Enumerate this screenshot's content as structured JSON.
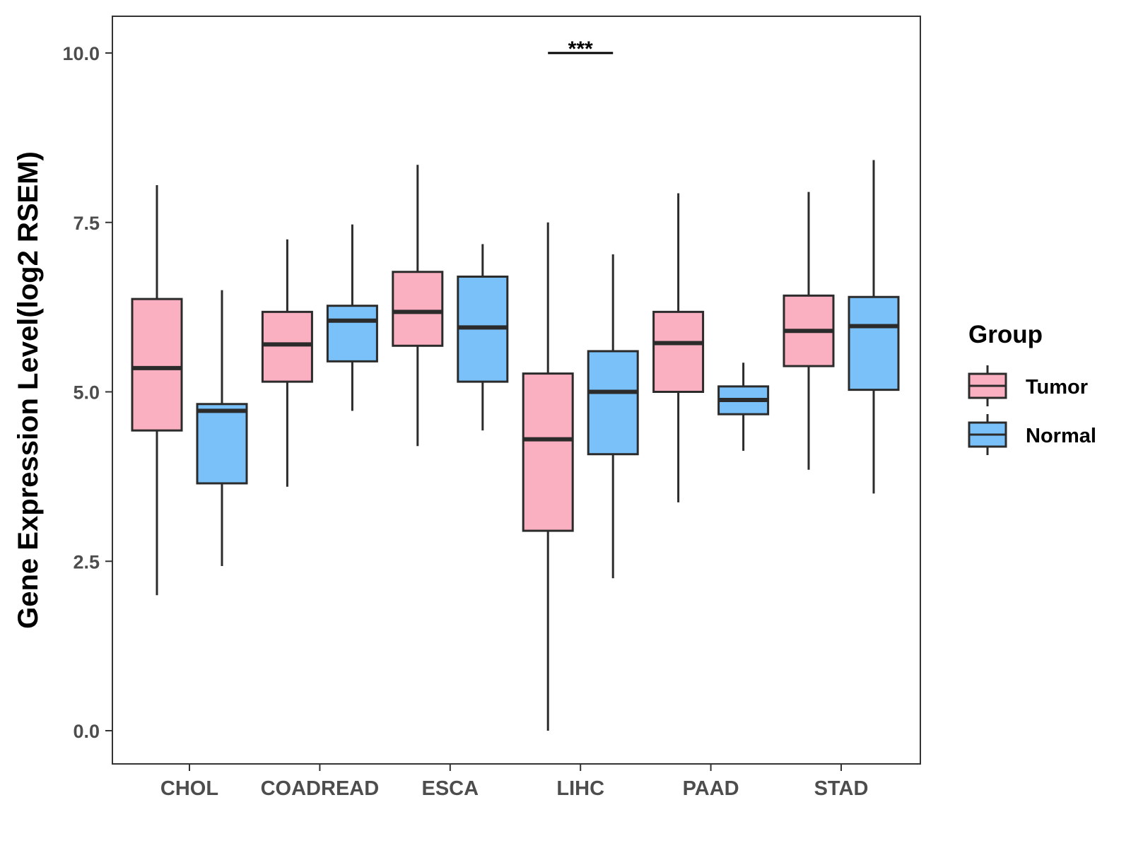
{
  "chart_data": {
    "type": "boxplot",
    "title": "",
    "xlabel": "",
    "ylabel": "Gene Expression Level(log2 RSEM)",
    "ylim": [
      -0.5,
      10.5
    ],
    "yticks": [
      0.0,
      2.5,
      5.0,
      7.5,
      10.0
    ],
    "ytick_labels": [
      "0.0",
      "2.5",
      "5.0",
      "7.5",
      "10.0"
    ],
    "categories": [
      "CHOL",
      "COADREAD",
      "ESCA",
      "LIHC",
      "PAAD",
      "STAD"
    ],
    "grid": false,
    "legend": {
      "title": "Group",
      "position": "right",
      "entries": [
        {
          "name": "Tumor",
          "color": "#fbb0c1"
        },
        {
          "name": "Normal",
          "color": "#79c1f8"
        }
      ]
    },
    "series": [
      {
        "name": "Tumor",
        "color": "#fbb0c1",
        "boxes": [
          {
            "category": "CHOL",
            "min": 2.0,
            "q1": 4.43,
            "median": 5.35,
            "q3": 6.37,
            "max": 8.05
          },
          {
            "category": "COADREAD",
            "min": 3.6,
            "q1": 5.15,
            "median": 5.7,
            "q3": 6.18,
            "max": 7.25
          },
          {
            "category": "ESCA",
            "min": 4.2,
            "q1": 5.68,
            "median": 6.18,
            "q3": 6.77,
            "max": 8.35
          },
          {
            "category": "LIHC",
            "min": 0.0,
            "q1": 2.95,
            "median": 4.3,
            "q3": 5.27,
            "max": 7.5
          },
          {
            "category": "PAAD",
            "min": 3.37,
            "q1": 5.0,
            "median": 5.72,
            "q3": 6.18,
            "max": 7.93
          },
          {
            "category": "STAD",
            "min": 3.85,
            "q1": 5.38,
            "median": 5.9,
            "q3": 6.42,
            "max": 7.95
          }
        ]
      },
      {
        "name": "Normal",
        "color": "#79c1f8",
        "boxes": [
          {
            "category": "CHOL",
            "min": 2.43,
            "q1": 3.65,
            "median": 4.72,
            "q3": 4.82,
            "max": 6.5
          },
          {
            "category": "COADREAD",
            "min": 4.72,
            "q1": 5.45,
            "median": 6.05,
            "q3": 6.27,
            "max": 7.47
          },
          {
            "category": "ESCA",
            "min": 4.43,
            "q1": 5.15,
            "median": 5.95,
            "q3": 6.7,
            "max": 7.18
          },
          {
            "category": "LIHC",
            "min": 2.25,
            "q1": 4.08,
            "median": 5.0,
            "q3": 5.6,
            "max": 7.03
          },
          {
            "category": "PAAD",
            "min": 4.13,
            "q1": 4.67,
            "median": 4.88,
            "q3": 5.08,
            "max": 5.43
          },
          {
            "category": "STAD",
            "min": 3.5,
            "q1": 5.03,
            "median": 5.97,
            "q3": 6.4,
            "max": 8.42
          }
        ]
      }
    ],
    "annotations": [
      {
        "category": "LIHC",
        "text": "***",
        "y": 10.0
      }
    ]
  }
}
